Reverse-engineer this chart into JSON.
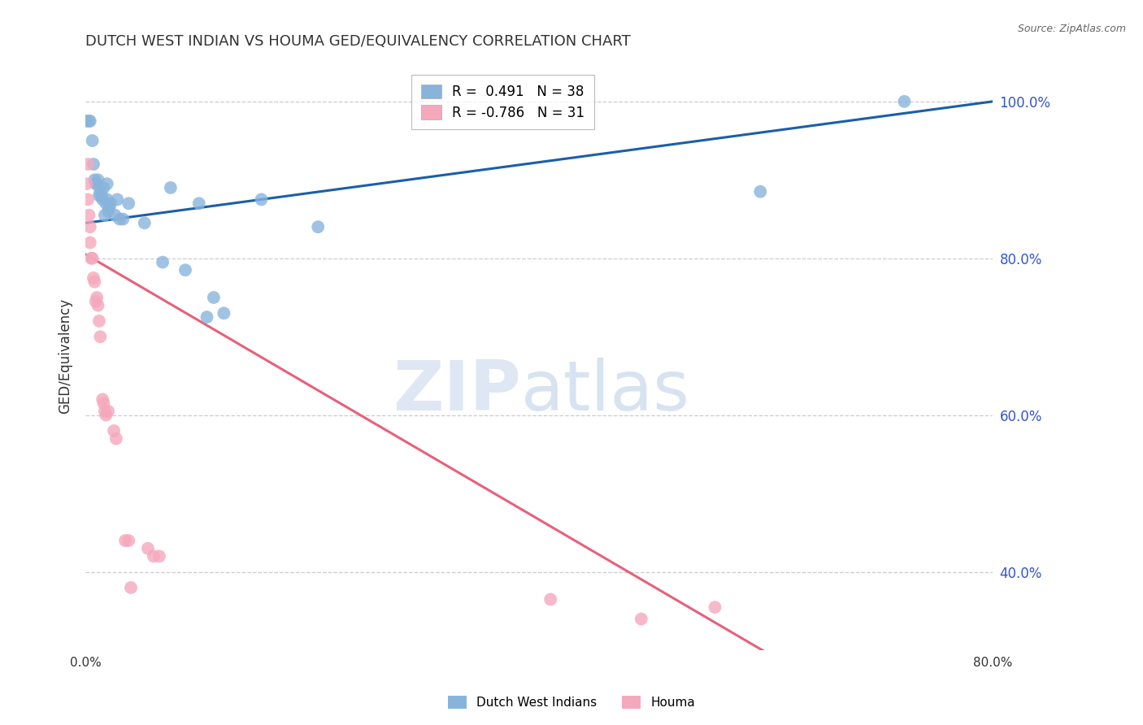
{
  "title": "DUTCH WEST INDIAN VS HOUMA GED/EQUIVALENCY CORRELATION CHART",
  "source": "Source: ZipAtlas.com",
  "xmin": 0.0,
  "xmax": 0.8,
  "ymin": 0.3,
  "ymax": 1.05,
  "ylabel_ticks": [
    40.0,
    60.0,
    80.0,
    100.0
  ],
  "blue_legend_line1": "R =  0.491   N = 38",
  "pink_legend_line1": "R = -0.786   N = 31",
  "blue_label": "Dutch West Indians",
  "pink_label": "Houma",
  "blue_color": "#88b4dc",
  "pink_color": "#f5a8bc",
  "blue_line_color": "#1a5fa8",
  "pink_line_color": "#e8607a",
  "title_fontsize": 13,
  "axis_label_color": "#333333",
  "right_tick_color": "#3355cc",
  "grid_color": "#cccccc",
  "background_color": "#ffffff",
  "blue_dots": [
    [
      0.001,
      0.975
    ],
    [
      0.003,
      0.975
    ],
    [
      0.004,
      0.975
    ],
    [
      0.006,
      0.95
    ],
    [
      0.007,
      0.92
    ],
    [
      0.008,
      0.9
    ],
    [
      0.009,
      0.895
    ],
    [
      0.01,
      0.895
    ],
    [
      0.011,
      0.9
    ],
    [
      0.012,
      0.88
    ],
    [
      0.013,
      0.885
    ],
    [
      0.014,
      0.88
    ],
    [
      0.015,
      0.875
    ],
    [
      0.016,
      0.89
    ],
    [
      0.017,
      0.855
    ],
    [
      0.018,
      0.87
    ],
    [
      0.019,
      0.875
    ],
    [
      0.019,
      0.895
    ],
    [
      0.02,
      0.86
    ],
    [
      0.021,
      0.865
    ],
    [
      0.022,
      0.87
    ],
    [
      0.026,
      0.855
    ],
    [
      0.028,
      0.875
    ],
    [
      0.03,
      0.85
    ],
    [
      0.033,
      0.85
    ],
    [
      0.038,
      0.87
    ],
    [
      0.052,
      0.845
    ],
    [
      0.068,
      0.795
    ],
    [
      0.075,
      0.89
    ],
    [
      0.088,
      0.785
    ],
    [
      0.1,
      0.87
    ],
    [
      0.107,
      0.725
    ],
    [
      0.113,
      0.75
    ],
    [
      0.122,
      0.73
    ],
    [
      0.155,
      0.875
    ],
    [
      0.205,
      0.84
    ],
    [
      0.595,
      0.885
    ],
    [
      0.722,
      1.0
    ]
  ],
  "pink_dots": [
    [
      0.001,
      0.895
    ],
    [
      0.002,
      0.92
    ],
    [
      0.002,
      0.875
    ],
    [
      0.003,
      0.855
    ],
    [
      0.004,
      0.84
    ],
    [
      0.004,
      0.82
    ],
    [
      0.005,
      0.8
    ],
    [
      0.006,
      0.8
    ],
    [
      0.007,
      0.775
    ],
    [
      0.008,
      0.77
    ],
    [
      0.009,
      0.745
    ],
    [
      0.01,
      0.75
    ],
    [
      0.011,
      0.74
    ],
    [
      0.012,
      0.72
    ],
    [
      0.013,
      0.7
    ],
    [
      0.015,
      0.62
    ],
    [
      0.016,
      0.615
    ],
    [
      0.017,
      0.605
    ],
    [
      0.018,
      0.6
    ],
    [
      0.02,
      0.605
    ],
    [
      0.025,
      0.58
    ],
    [
      0.027,
      0.57
    ],
    [
      0.035,
      0.44
    ],
    [
      0.038,
      0.44
    ],
    [
      0.04,
      0.38
    ],
    [
      0.055,
      0.43
    ],
    [
      0.06,
      0.42
    ],
    [
      0.065,
      0.42
    ],
    [
      0.41,
      0.365
    ],
    [
      0.49,
      0.34
    ],
    [
      0.555,
      0.355
    ]
  ],
  "blue_trendline_x": [
    0.0,
    0.8
  ],
  "blue_trendline_y": [
    0.845,
    1.0
  ],
  "pink_trendline_x": [
    0.0,
    0.597
  ],
  "pink_trendline_y": [
    0.805,
    0.3
  ]
}
